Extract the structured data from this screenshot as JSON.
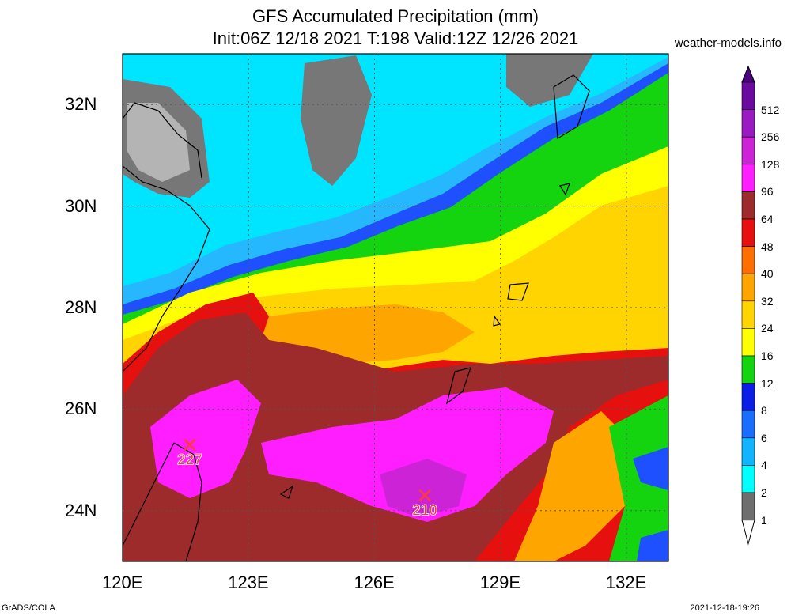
{
  "title": {
    "line1": "GFS Accumulated Precipitation (mm)",
    "line2": "Init:06Z 12/18 2021 T:198 Valid:12Z 12/26 2021"
  },
  "source": "weather-models.info",
  "footer": {
    "left": "GrADS/COLA",
    "right": "2021-12-18-19:26"
  },
  "axes": {
    "lat_labels": [
      "32N",
      "30N",
      "28N",
      "26N",
      "24N"
    ],
    "lon_labels": [
      "120E",
      "123E",
      "126E",
      "129E",
      "132E"
    ]
  },
  "markers": [
    {
      "label": "227",
      "lon": 121.6,
      "lat": 25.3
    },
    {
      "label": "210",
      "lon": 127.2,
      "lat": 24.3
    }
  ],
  "colorbar": [
    {
      "label": "512",
      "color": "#6a0a9e"
    },
    {
      "label": "256",
      "color": "#9a19c0"
    },
    {
      "label": "128",
      "color": "#cd23d6"
    },
    {
      "label": "96",
      "color": "#ff1eff"
    },
    {
      "label": "64",
      "color": "#9e2b2b"
    },
    {
      "label": "48",
      "color": "#e6100f"
    },
    {
      "label": "40",
      "color": "#ff6e00"
    },
    {
      "label": "32",
      "color": "#ffa500"
    },
    {
      "label": "24",
      "color": "#ffd400"
    },
    {
      "label": "16",
      "color": "#ffff00"
    },
    {
      "label": "12",
      "color": "#13d40f"
    },
    {
      "label": "8",
      "color": "#0a1ee6"
    },
    {
      "label": "6",
      "color": "#1a6eff"
    },
    {
      "label": "4",
      "color": "#10b4ff"
    },
    {
      "label": "2",
      "color": "#00ffff"
    },
    {
      "label": "1",
      "color": "#6e6e6e"
    }
  ],
  "colorbar_ends": {
    "top": "#4b0080",
    "bottom": "#ffffff"
  },
  "colors": {
    "land_grey_dark": "#777777",
    "land_grey_light": "#b4b4b4",
    "cyan": "#00e5ff",
    "sky": "#26b8ff",
    "blue": "#1e50ff",
    "green": "#13d40f",
    "yellow": "#ffff00",
    "gold": "#ffd400",
    "orange": "#ffa500",
    "red": "#e6100f",
    "brown": "#9e2b2b",
    "magenta": "#ff1eff",
    "purple": "#cd23d6"
  }
}
